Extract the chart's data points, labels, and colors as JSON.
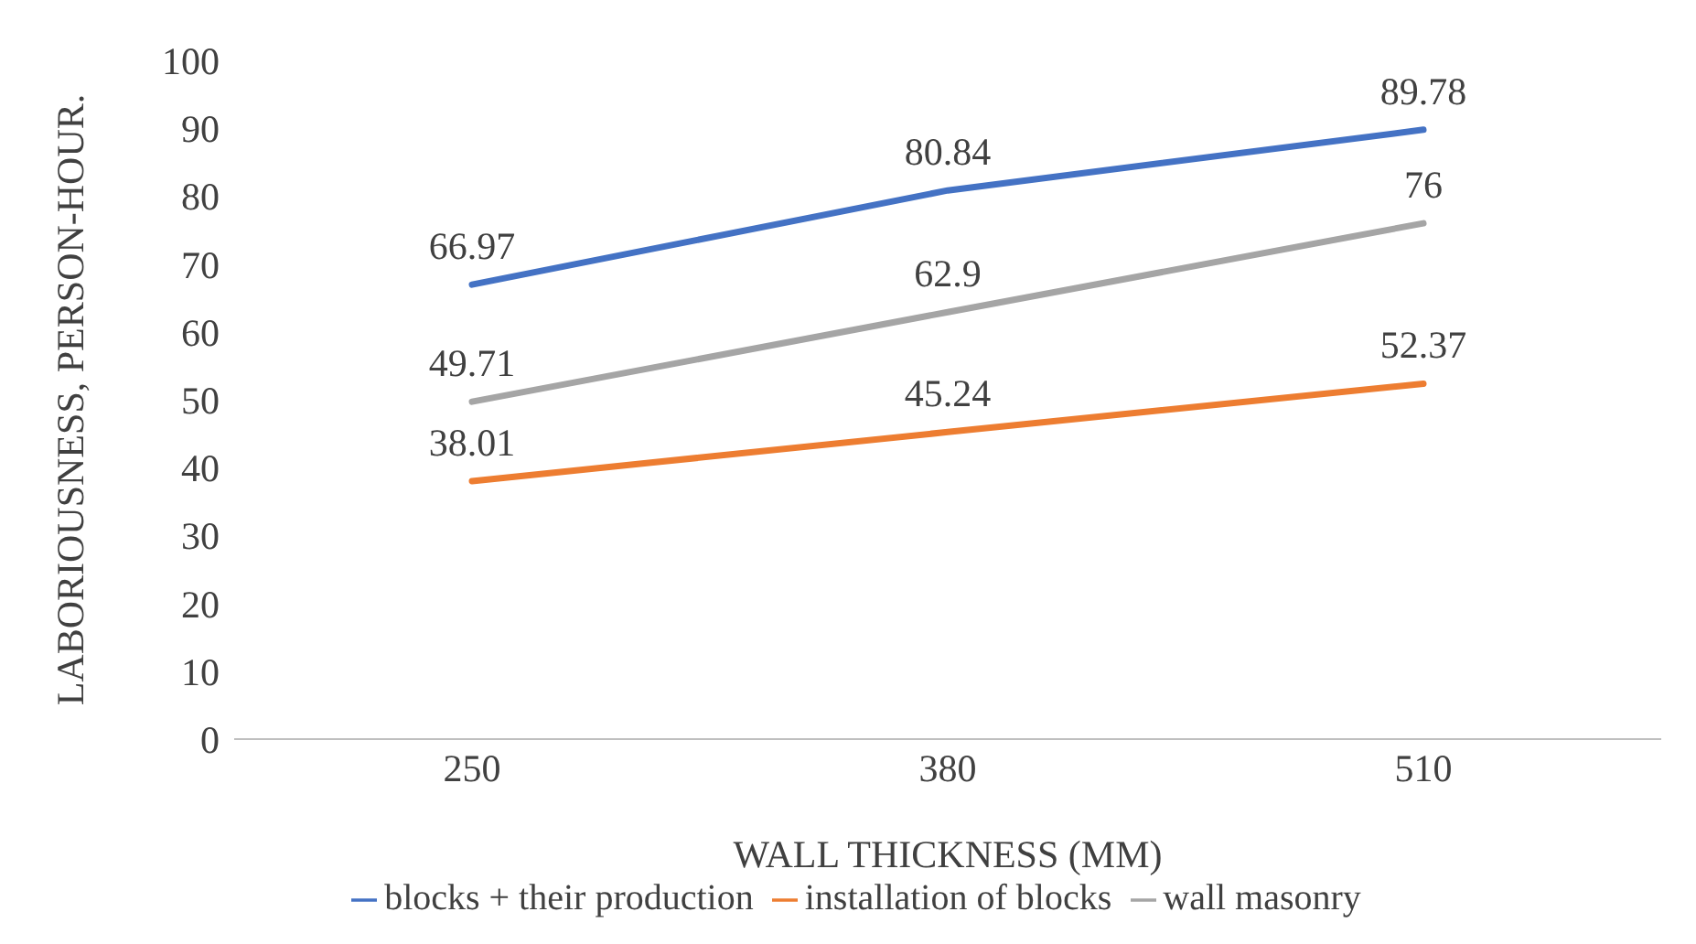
{
  "chart_data": {
    "type": "line",
    "xlabel": "WALL THICKNESS (MM)",
    "ylabel": "LABORIOUSNESS, PERSON-HOUR.",
    "categories": [
      "250",
      "380",
      "510"
    ],
    "series": [
      {
        "name": "blocks + their production",
        "color": "#4472c4",
        "values": [
          66.97,
          80.84,
          89.78
        ]
      },
      {
        "name": "installation of blocks",
        "color": "#ed7d31",
        "values": [
          38.01,
          45.24,
          52.37
        ]
      },
      {
        "name": "wall masonry",
        "color": "#a5a5a5",
        "values": [
          49.71,
          62.9,
          76
        ]
      }
    ],
    "ylim": [
      0,
      100
    ],
    "yticks": [
      0,
      10,
      20,
      30,
      40,
      50,
      60,
      70,
      80,
      90,
      100
    ],
    "data_labels": true,
    "legend": "bottom",
    "marker": "none",
    "line_style": "solid",
    "grid": false
  }
}
